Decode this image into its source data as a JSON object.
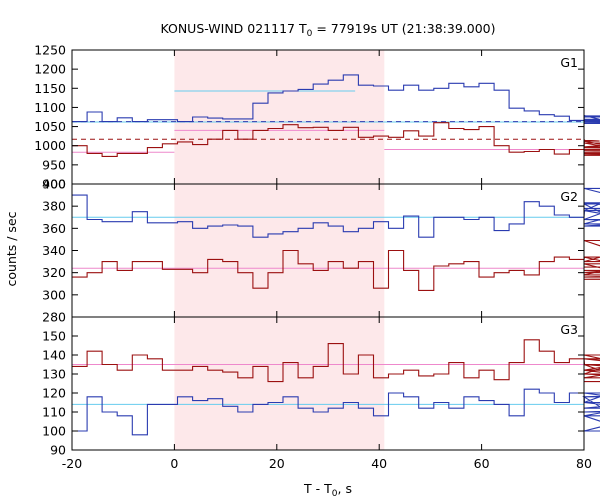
{
  "chart_data": {
    "type": "line",
    "title_prefix": "KONUS-WIND 021117 T",
    "title_sub": "0",
    "title_suffix": " = 77919s UT (21:38:39.000)",
    "ylabel": "counts / sec",
    "xlabel_main": "T - T",
    "xlabel_sub": "0",
    "xlabel_unit": ", s",
    "xlim": [
      -20,
      80
    ],
    "x_ticks": [
      -20,
      0,
      20,
      40,
      60,
      80
    ],
    "highlight_x": [
      0,
      41
    ],
    "colors": {
      "blue": "#2a3bb0",
      "red": "#9b1010",
      "lightblue": "#66ccee",
      "pink": "#ee88cc",
      "shade": "#fde8ea"
    },
    "panels": [
      {
        "label": "G1",
        "ylim": [
          900,
          1250
        ],
        "y_ticks": [
          900,
          950,
          1000,
          1050,
          1100,
          1150,
          1200,
          1250
        ],
        "series": [
          {
            "color": "blue",
            "x0": -20,
            "dx": 2.944,
            "values": [
              1063,
              1088,
              1063,
              1073,
              1063,
              1068,
              1068,
              1063,
              1075,
              1072,
              1070,
              1070,
              1111,
              1138,
              1143,
              1147,
              1161,
              1171,
              1185,
              1158,
              1156,
              1145,
              1158,
              1145,
              1150,
              1163,
              1154,
              1163,
              1145,
              1098,
              1091,
              1081,
              1077,
              1066,
              1079,
              1069,
              1066,
              1068,
              1058,
              1075,
              1078,
              1063,
              1060,
              1060,
              1062
            ]
          },
          {
            "color": "red",
            "x0": -20,
            "dx": 2.944,
            "values": [
              1000,
              980,
              972,
              980,
              980,
              995,
              1005,
              1010,
              1003,
              1017,
              1040,
              1017,
              1040,
              1045,
              1055,
              1047,
              1048,
              1040,
              1048,
              1022,
              1025,
              1022,
              1039,
              1025,
              1060,
              1045,
              1042,
              1050,
              1000,
              983,
              985,
              990,
              978,
              990,
              1015,
              1012,
              997,
              1007,
              980,
              978,
              975,
              983,
              990,
              995,
              988
            ]
          }
        ],
        "levels": [
          {
            "color": "lightblue",
            "y": 1062,
            "style": "solid",
            "x": [
              -20,
              80
            ]
          },
          {
            "color": "lightblue",
            "y": 1143,
            "style": "solid",
            "x": [
              0,
              35.3
            ]
          },
          {
            "color": "blue",
            "y": 1063,
            "style": "dashed",
            "x": [
              -20,
              80
            ]
          },
          {
            "color": "pink",
            "y": 983,
            "style": "solid",
            "x": [
              -20,
              0
            ]
          },
          {
            "color": "pink",
            "y": 1040,
            "style": "solid",
            "x": [
              0,
              41
            ]
          },
          {
            "color": "pink",
            "y": 990,
            "style": "solid",
            "x": [
              41,
              80
            ]
          },
          {
            "color": "red",
            "y": 1017,
            "style": "dashed",
            "x": [
              -20,
              80
            ]
          }
        ]
      },
      {
        "label": "G2",
        "ylim": [
          280,
          400
        ],
        "y_ticks": [
          280,
          300,
          320,
          340,
          360,
          380,
          400
        ],
        "series": [
          {
            "color": "blue",
            "x0": -20,
            "dx": 2.944,
            "values": [
              390,
              368,
              366,
              366,
              375,
              365,
              365,
              366,
              360,
              362,
              363,
              362,
              352,
              355,
              357,
              360,
              365,
              362,
              357,
              360,
              366,
              360,
              371,
              352,
              370,
              370,
              368,
              370,
              358,
              364,
              384,
              380,
              372,
              370,
              376,
              382,
              368,
              383,
              378,
              376,
              362,
              368,
              364,
              396,
              362
            ]
          },
          {
            "color": "red",
            "x0": -20,
            "dx": 2.944,
            "values": [
              316,
              320,
              330,
              322,
              330,
              330,
              323,
              323,
              320,
              332,
              330,
              320,
              306,
              320,
              340,
              328,
              322,
              330,
              324,
              330,
              306,
              340,
              322,
              304,
              326,
              328,
              330,
              316,
              320,
              322,
              318,
              330,
              334,
              332,
              334,
              334,
              328,
              318,
              330,
              349,
              322,
              314,
              316,
              320,
              325
            ]
          }
        ],
        "levels": [
          {
            "color": "lightblue",
            "y": 370,
            "style": "solid",
            "x": [
              -20,
              80
            ]
          },
          {
            "color": "pink",
            "y": 324,
            "style": "solid",
            "x": [
              -20,
              80
            ]
          }
        ]
      },
      {
        "label": "G3",
        "ylim": [
          90,
          160
        ],
        "y_ticks": [
          90,
          100,
          110,
          120,
          130,
          140,
          150
        ],
        "series": [
          {
            "color": "blue",
            "x0": -20,
            "dx": 2.944,
            "values": [
              100,
              118,
              110,
              108,
              98,
              114,
              114,
              118,
              116,
              117,
              113,
              110,
              114,
              115,
              118,
              112,
              110,
              112,
              115,
              112,
              108,
              120,
              118,
              112,
              115,
              112,
              118,
              116,
              114,
              108,
              122,
              120,
              115,
              120,
              115,
              118,
              108,
              100,
              108,
              115,
              110,
              112,
              118,
              120,
              110
            ]
          },
          {
            "color": "red",
            "x0": -20,
            "dx": 2.944,
            "values": [
              134,
              142,
              135,
              132,
              140,
              138,
              132,
              132,
              134,
              132,
              131,
              128,
              134,
              126,
              136,
              128,
              134,
              146,
              130,
              140,
              128,
              130,
              132,
              129,
              130,
              136,
              128,
              132,
              127,
              136,
              148,
              142,
              136,
              138,
              135,
              132,
              130,
              138,
              135,
              132,
              140,
              128,
              138,
              130,
              126
            ]
          }
        ],
        "levels": [
          {
            "color": "lightblue",
            "y": 114,
            "style": "solid",
            "x": [
              -20,
              80
            ]
          },
          {
            "color": "pink",
            "y": 135,
            "style": "solid",
            "x": [
              -20,
              80
            ]
          }
        ]
      }
    ]
  }
}
